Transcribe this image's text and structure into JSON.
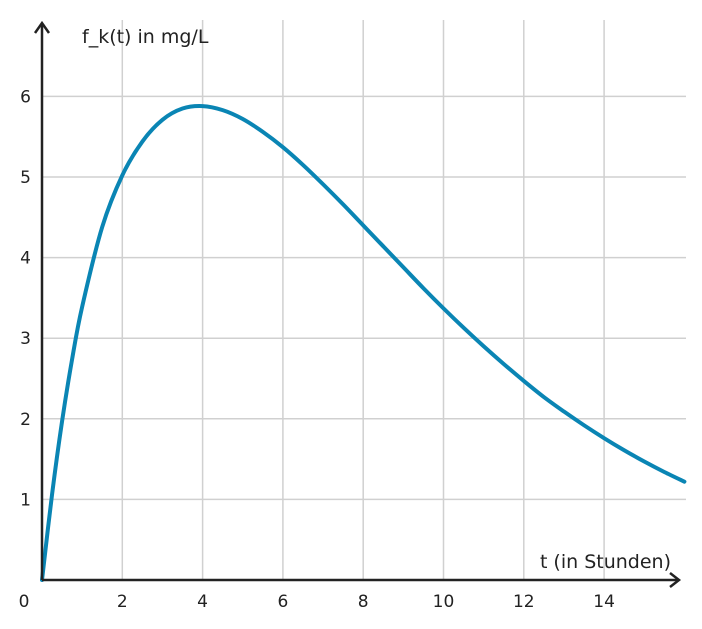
{
  "chart_data": {
    "type": "line",
    "title": "",
    "ylabel": "f_k(t) in mg/L",
    "xlabel": "t (in Stunden)",
    "origin_label": "0",
    "xlim": [
      0,
      16
    ],
    "ylim": [
      0,
      7
    ],
    "x_ticks": [
      2,
      4,
      6,
      8,
      10,
      12,
      14
    ],
    "y_ticks": [
      1,
      2,
      3,
      4,
      5,
      6
    ],
    "x_tick_labels": [
      "2",
      "4",
      "6",
      "8",
      "10",
      "12",
      "14"
    ],
    "y_tick_labels": [
      "1",
      "2",
      "3",
      "4",
      "5",
      "6"
    ],
    "grid": true,
    "series": [
      {
        "color": "#0a85b4",
        "x": [
          0,
          0.25,
          0.5,
          0.75,
          1,
          1.5,
          2,
          2.5,
          3,
          3.5,
          4,
          4.5,
          5,
          5.5,
          6,
          6.5,
          7,
          7.5,
          8,
          8.5,
          9,
          9.5,
          10,
          10.5,
          11,
          11.5,
          12,
          12.5,
          13,
          13.5,
          14,
          14.5,
          15,
          15.5,
          16
        ],
        "y": [
          0,
          1.06,
          1.97,
          2.74,
          3.39,
          4.38,
          5.02,
          5.44,
          5.71,
          5.85,
          5.88,
          5.83,
          5.72,
          5.56,
          5.37,
          5.15,
          4.91,
          4.66,
          4.4,
          4.14,
          3.88,
          3.62,
          3.37,
          3.13,
          2.9,
          2.68,
          2.47,
          2.27,
          2.09,
          1.92,
          1.76,
          1.61,
          1.47,
          1.34,
          1.22
        ]
      }
    ]
  }
}
